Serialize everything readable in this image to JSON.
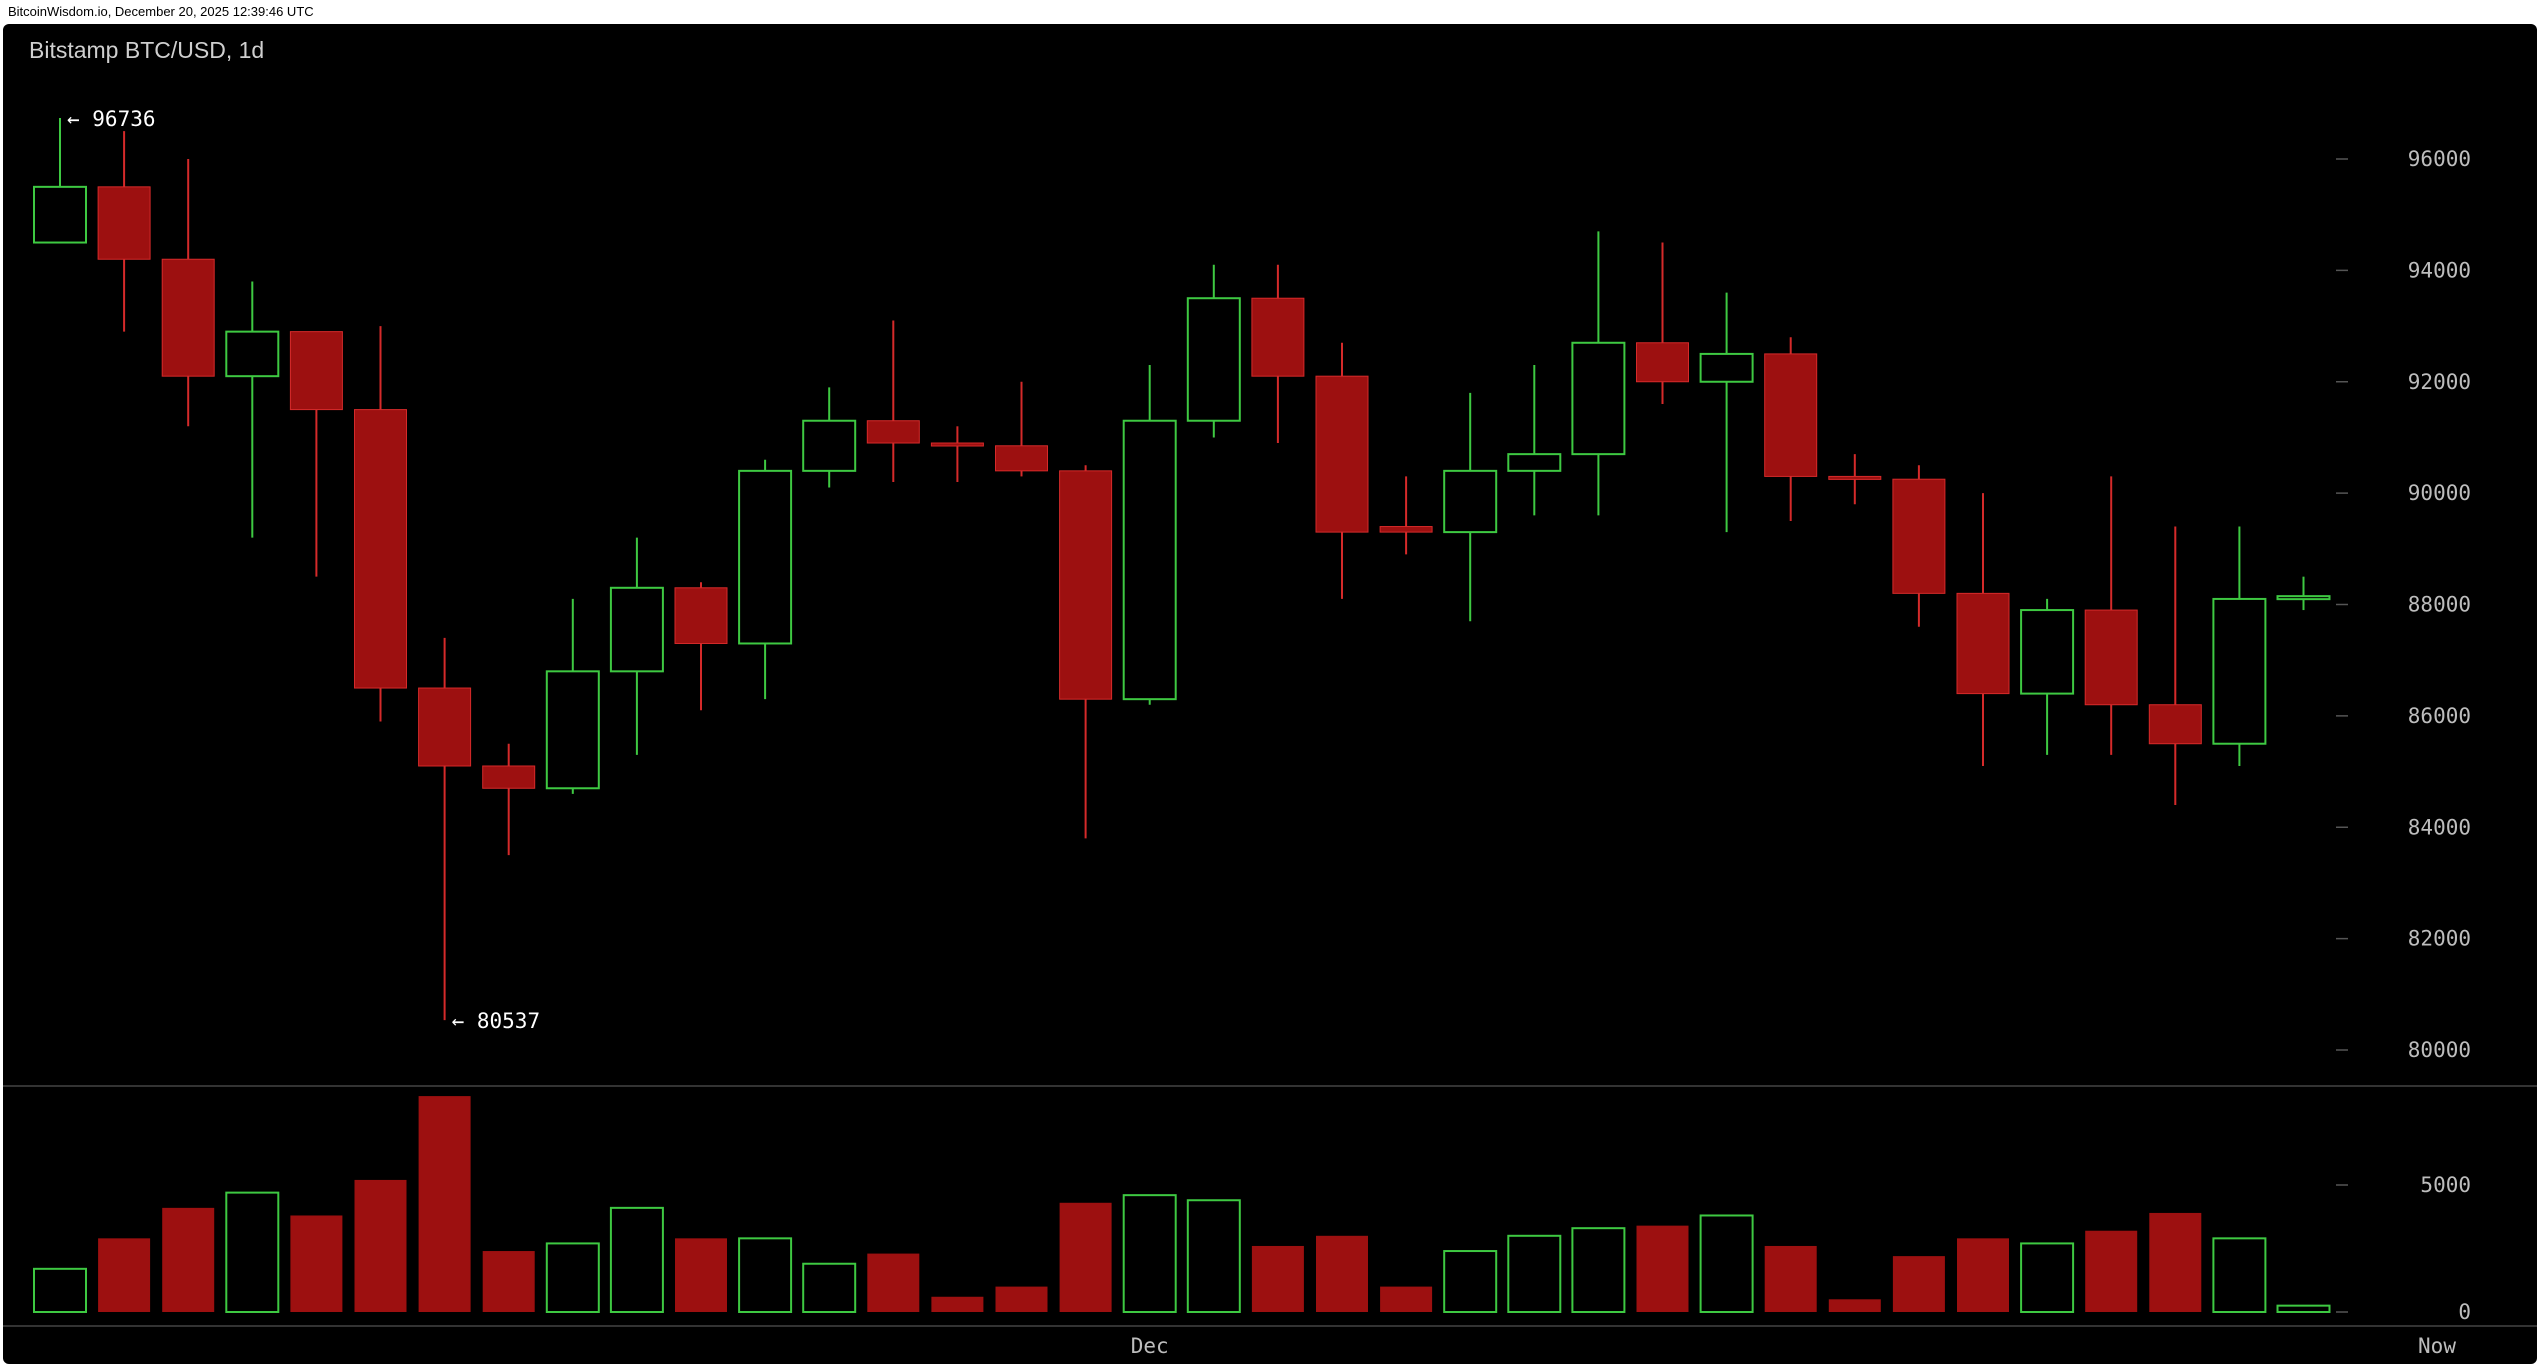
{
  "header": {
    "text": "BitcoinWisdom.io, December 20, 2025 12:39:46 UTC"
  },
  "chart_data": {
    "type": "candlestick",
    "title": "Bitstamp BTC/USD, 1d",
    "colors": {
      "up": "#3ec942",
      "down": "#9d1010",
      "down_line": "#d52a2a",
      "background": "#000000",
      "text": "#bdbdbd"
    },
    "price_axis": {
      "ylim": [
        79000,
        97500
      ],
      "ticks": [
        80000,
        82000,
        84000,
        86000,
        88000,
        90000,
        92000,
        94000,
        96000
      ]
    },
    "volume_axis": {
      "ylim": [
        0,
        7800
      ],
      "ticks": [
        0,
        5000
      ]
    },
    "x_labels": [
      {
        "index": 17,
        "label": "Dec"
      },
      {
        "index": 37,
        "label": "Now"
      }
    ],
    "annotations": [
      {
        "index": 0,
        "value": 96736,
        "label": "← 96736"
      },
      {
        "index": 6,
        "value": 80537,
        "label": "← 80537"
      }
    ],
    "candles": [
      {
        "o": 94500,
        "h": 96736,
        "l": 94500,
        "c": 95500,
        "v": 1700
      },
      {
        "o": 95500,
        "h": 96500,
        "l": 92900,
        "c": 94200,
        "v": 2900
      },
      {
        "o": 94200,
        "h": 96000,
        "l": 91200,
        "c": 92100,
        "v": 4100
      },
      {
        "o": 92100,
        "h": 93800,
        "l": 89200,
        "c": 92900,
        "v": 4700
      },
      {
        "o": 92900,
        "h": 92900,
        "l": 88500,
        "c": 91500,
        "v": 3800
      },
      {
        "o": 91500,
        "h": 93000,
        "l": 85900,
        "c": 86500,
        "v": 5200
      },
      {
        "o": 86500,
        "h": 87400,
        "l": 80537,
        "c": 85100,
        "v": 8500
      },
      {
        "o": 85100,
        "h": 85500,
        "l": 83500,
        "c": 84700,
        "v": 2400
      },
      {
        "o": 84700,
        "h": 88100,
        "l": 84600,
        "c": 86800,
        "v": 2700
      },
      {
        "o": 86800,
        "h": 89200,
        "l": 85300,
        "c": 88300,
        "v": 4100
      },
      {
        "o": 88300,
        "h": 88400,
        "l": 86100,
        "c": 87300,
        "v": 2900
      },
      {
        "o": 87300,
        "h": 90600,
        "l": 86300,
        "c": 90400,
        "v": 2900
      },
      {
        "o": 90400,
        "h": 91900,
        "l": 90100,
        "c": 91300,
        "v": 1900
      },
      {
        "o": 91300,
        "h": 93100,
        "l": 90200,
        "c": 90900,
        "v": 2300
      },
      {
        "o": 90900,
        "h": 91200,
        "l": 90200,
        "c": 90850,
        "v": 600
      },
      {
        "o": 90850,
        "h": 92000,
        "l": 90300,
        "c": 90400,
        "v": 1000
      },
      {
        "o": 90400,
        "h": 90500,
        "l": 83800,
        "c": 86300,
        "v": 4300
      },
      {
        "o": 86300,
        "h": 92300,
        "l": 86200,
        "c": 91300,
        "v": 4600
      },
      {
        "o": 91300,
        "h": 94100,
        "l": 91000,
        "c": 93500,
        "v": 4400
      },
      {
        "o": 93500,
        "h": 94100,
        "l": 90900,
        "c": 92100,
        "v": 2600
      },
      {
        "o": 92100,
        "h": 92700,
        "l": 88100,
        "c": 89300,
        "v": 3000
      },
      {
        "o": 89400,
        "h": 90300,
        "l": 88900,
        "c": 89300,
        "v": 1000
      },
      {
        "o": 89300,
        "h": 91800,
        "l": 87700,
        "c": 90400,
        "v": 2400
      },
      {
        "o": 90400,
        "h": 92300,
        "l": 89600,
        "c": 90700,
        "v": 3000
      },
      {
        "o": 90700,
        "h": 94700,
        "l": 89600,
        "c": 92700,
        "v": 3300
      },
      {
        "o": 92700,
        "h": 94500,
        "l": 91600,
        "c": 92000,
        "v": 3400
      },
      {
        "o": 92000,
        "h": 93600,
        "l": 89300,
        "c": 92500,
        "v": 3800
      },
      {
        "o": 92500,
        "h": 92800,
        "l": 89500,
        "c": 90300,
        "v": 2600
      },
      {
        "o": 90300,
        "h": 90700,
        "l": 89800,
        "c": 90250,
        "v": 500
      },
      {
        "o": 90250,
        "h": 90500,
        "l": 87600,
        "c": 88200,
        "v": 2200
      },
      {
        "o": 88200,
        "h": 90000,
        "l": 85100,
        "c": 86400,
        "v": 2900
      },
      {
        "o": 86400,
        "h": 88100,
        "l": 85300,
        "c": 87900,
        "v": 2700
      },
      {
        "o": 87900,
        "h": 90300,
        "l": 85300,
        "c": 86200,
        "v": 3200
      },
      {
        "o": 86200,
        "h": 89400,
        "l": 84400,
        "c": 85500,
        "v": 3900
      },
      {
        "o": 85500,
        "h": 89400,
        "l": 85100,
        "c": 88100,
        "v": 2900
      },
      {
        "o": 88100,
        "h": 88500,
        "l": 87900,
        "c": 88150,
        "v": 250
      }
    ]
  }
}
